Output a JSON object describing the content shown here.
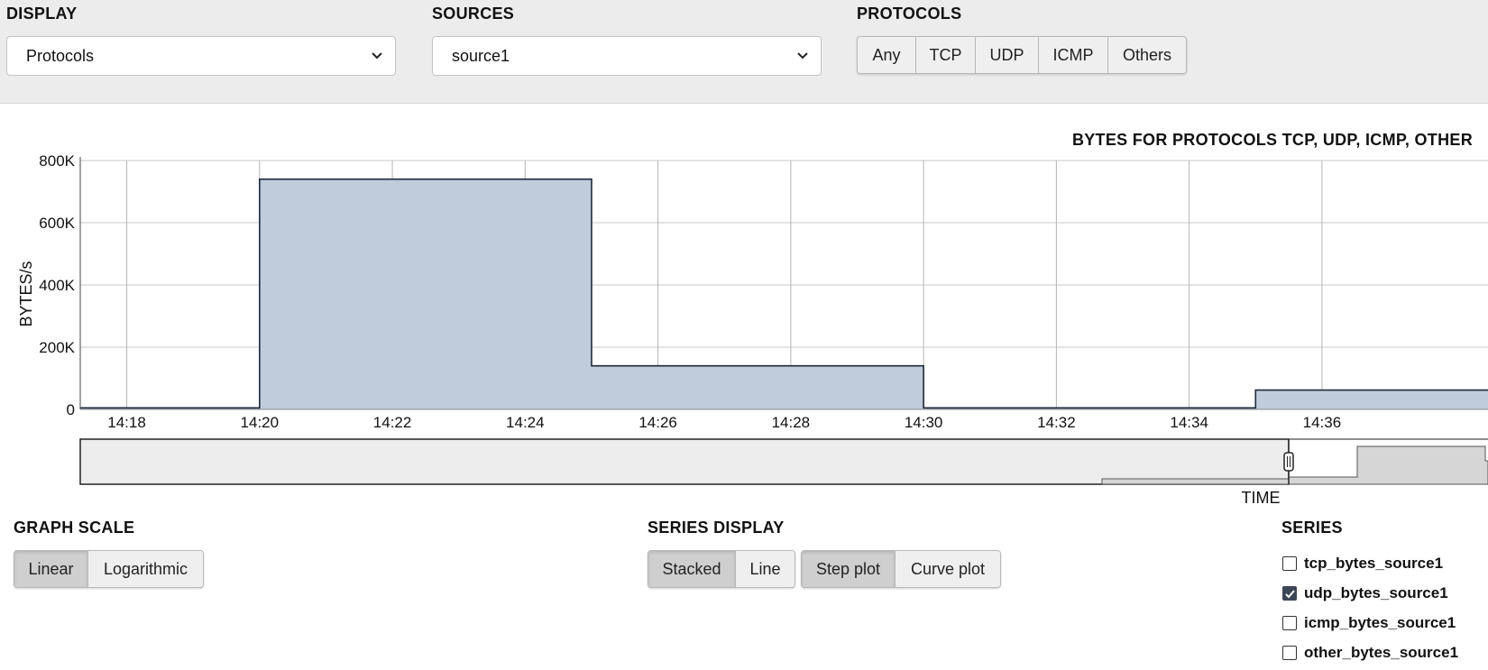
{
  "controls": {
    "display": {
      "label": "DISPLAY",
      "value": "Protocols"
    },
    "sources": {
      "label": "SOURCES",
      "value": "source1"
    },
    "protocols": {
      "label": "PROTOCOLS",
      "buttons": [
        "Any",
        "TCP",
        "UDP",
        "ICMP",
        "Others"
      ],
      "active": [
        "TCP",
        "UDP",
        "ICMP",
        "Others"
      ]
    }
  },
  "graph_scale": {
    "label": "GRAPH SCALE",
    "buttons": [
      "Linear",
      "Logarithmic"
    ],
    "active": "Linear"
  },
  "series_display": {
    "label": "SERIES DISPLAY",
    "mode_buttons": [
      "Stacked",
      "Line"
    ],
    "mode_active": "Stacked",
    "plot_buttons": [
      "Step plot",
      "Curve plot"
    ],
    "plot_active": "Step plot"
  },
  "series_list": {
    "label": "SERIES",
    "items": [
      {
        "name": "tcp_bytes_source1",
        "checked": false
      },
      {
        "name": "udp_bytes_source1",
        "checked": true
      },
      {
        "name": "icmp_bytes_source1",
        "checked": false
      },
      {
        "name": "other_bytes_source1",
        "checked": false
      }
    ]
  },
  "chart_data": {
    "type": "area",
    "title": "BYTES FOR PROTOCOLS TCP, UDP, ICMP, OTHER",
    "xlabel": "TIME",
    "ylabel": "BYTES/s",
    "interpolation": "step",
    "x_ticks": [
      "14:18",
      "14:20",
      "14:22",
      "14:24",
      "14:26",
      "14:28",
      "14:30",
      "14:32",
      "14:34",
      "14:36"
    ],
    "y_ticks": [
      "0",
      "200K",
      "400K",
      "600K",
      "800K"
    ],
    "y_tick_values": [
      0,
      200000,
      400000,
      600000,
      800000
    ],
    "ylim": [
      0,
      800000
    ],
    "xlim": [
      "14:17:18",
      "14:38:30"
    ],
    "grid": true,
    "fill_color": "#c0cbdc",
    "line_color": "#1e2a3a",
    "series": [
      {
        "name": "udp_bytes_source1",
        "points": [
          {
            "t": "14:17:18",
            "v": 5000
          },
          {
            "t": "14:20:00",
            "v": 740000
          },
          {
            "t": "14:25:00",
            "v": 140000
          },
          {
            "t": "14:30:00",
            "v": 5000
          },
          {
            "t": "14:35:00",
            "v": 62000
          },
          {
            "t": "14:38:30",
            "v": 62000
          }
        ]
      }
    ]
  }
}
